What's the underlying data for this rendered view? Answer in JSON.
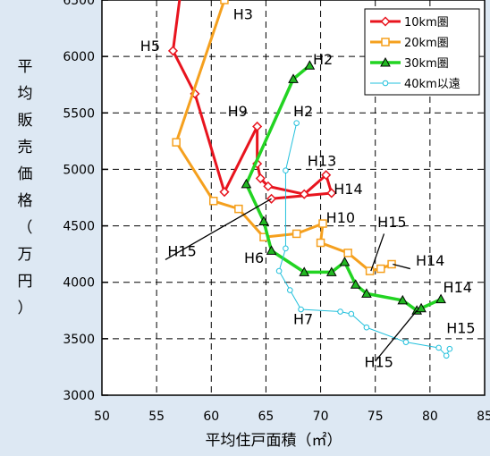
{
  "chart_data": {
    "type": "line",
    "title": "",
    "xlabel": "平均住戸面積（㎡）",
    "ylabel": "平均販売価格（万円）",
    "xlim": [
      50,
      85
    ],
    "ylim": [
      3000,
      6500
    ],
    "xticks": [
      "50",
      "55",
      "60",
      "65",
      "70",
      "75",
      "80",
      "85"
    ],
    "yticks": [
      "3000",
      "3500",
      "4000",
      "4500",
      "5000",
      "5500",
      "6000",
      "6500"
    ],
    "grid": true,
    "legend_position": "top-right",
    "series": [
      {
        "name": "10km圏",
        "color": "#e8141e",
        "marker": "diamond",
        "points": [
          [
            57.5,
            6800
          ],
          [
            56.5,
            6050
          ],
          [
            58.5,
            5670
          ],
          [
            61.2,
            4800
          ],
          [
            64.2,
            5380
          ],
          [
            64.2,
            5050
          ],
          [
            64.5,
            4920
          ],
          [
            65.2,
            4850
          ],
          [
            68.5,
            4780
          ],
          [
            70.5,
            4950
          ],
          [
            71.0,
            4790
          ],
          [
            65.5,
            4740
          ]
        ]
      },
      {
        "name": "20km圏",
        "color": "#f5a01e",
        "marker": "square",
        "points": [
          [
            61.2,
            6500
          ],
          [
            56.8,
            5240
          ],
          [
            60.2,
            4720
          ],
          [
            62.5,
            4650
          ],
          [
            64.8,
            4400
          ],
          [
            67.8,
            4430
          ],
          [
            70.2,
            4520
          ],
          [
            70.0,
            4350
          ],
          [
            72.5,
            4260
          ],
          [
            74.5,
            4100
          ],
          [
            75.5,
            4120
          ],
          [
            76.5,
            4160
          ]
        ]
      },
      {
        "name": "30km圏",
        "color": "#22d422",
        "marker": "triangle",
        "points": [
          [
            69.0,
            5920
          ],
          [
            67.5,
            5800
          ],
          [
            63.2,
            4870
          ],
          [
            64.8,
            4540
          ],
          [
            65.5,
            4280
          ],
          [
            68.5,
            4090
          ],
          [
            71.0,
            4090
          ],
          [
            72.2,
            4180
          ],
          [
            73.2,
            3980
          ],
          [
            74.2,
            3900
          ],
          [
            77.5,
            3840
          ],
          [
            78.8,
            3750
          ],
          [
            79.2,
            3770
          ],
          [
            81.0,
            3850
          ]
        ]
      },
      {
        "name": "40km以遠",
        "color": "#22c0dc",
        "marker": "circle",
        "points": [
          [
            67.8,
            5410
          ],
          [
            66.8,
            4990
          ],
          [
            66.8,
            4300
          ],
          [
            66.2,
            4100
          ],
          [
            67.2,
            3930
          ],
          [
            68.2,
            3760
          ],
          [
            71.8,
            3740
          ],
          [
            72.8,
            3720
          ],
          [
            74.2,
            3600
          ],
          [
            77.8,
            3470
          ],
          [
            80.8,
            3420
          ],
          [
            81.5,
            3350
          ],
          [
            81.8,
            3410
          ]
        ]
      }
    ],
    "annotations": [
      {
        "text": "H3",
        "x": 62.0,
        "y": 6330
      },
      {
        "text": "H5",
        "x": 53.5,
        "y": 6050
      },
      {
        "text": "H2",
        "x": 69.3,
        "y": 5930
      },
      {
        "text": "H9",
        "x": 61.5,
        "y": 5470
      },
      {
        "text": "H2",
        "x": 67.5,
        "y": 5470
      },
      {
        "text": "H13",
        "x": 68.8,
        "y": 5030
      },
      {
        "text": "H14",
        "x": 71.2,
        "y": 4780
      },
      {
        "text": "H10",
        "x": 70.5,
        "y": 4530
      },
      {
        "text": "H15",
        "x": 75.2,
        "y": 4490
      },
      {
        "text": "H15",
        "x": 56.0,
        "y": 4230
      },
      {
        "text": "H6",
        "x": 63.0,
        "y": 4170
      },
      {
        "text": "H14",
        "x": 78.7,
        "y": 4150
      },
      {
        "text": "H14",
        "x": 81.2,
        "y": 3910
      },
      {
        "text": "H7",
        "x": 67.5,
        "y": 3630
      },
      {
        "text": "H15",
        "x": 81.5,
        "y": 3550
      },
      {
        "text": "H15",
        "x": 74.0,
        "y": 3250
      }
    ],
    "leaders": [
      [
        [
          55.8,
          4200
        ],
        [
          65.5,
          4740
        ]
      ],
      [
        [
          75.8,
          4430
        ],
        [
          74.6,
          4100
        ]
      ],
      [
        [
          78.2,
          4120
        ],
        [
          76.6,
          4160
        ]
      ],
      [
        [
          75.0,
          3300
        ],
        [
          78.8,
          3750
        ]
      ]
    ]
  }
}
